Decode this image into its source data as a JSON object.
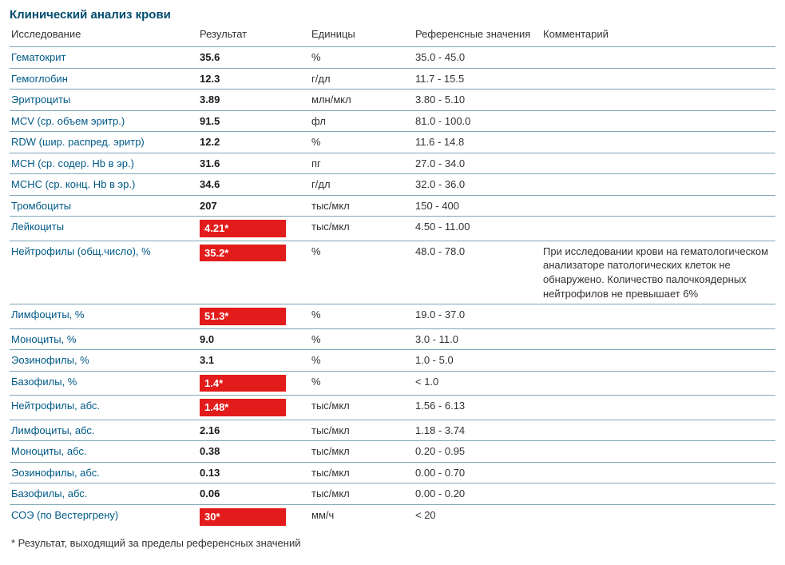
{
  "title": "Клинический анализ крови",
  "columns": {
    "test": "Исследование",
    "result": "Результат",
    "units": "Единицы",
    "ref": "Референсные значения",
    "comment": "Комментарий"
  },
  "footnote": "* Результат, выходящий за пределы референсных значений",
  "flag_bg": "#e21b1b",
  "flag_fg": "#ffffff",
  "rows": [
    {
      "test": "Гематокрит",
      "result": "35.6",
      "flagged": false,
      "units": "%",
      "ref": "35.0 - 45.0",
      "comment": ""
    },
    {
      "test": "Гемоглобин",
      "result": "12.3",
      "flagged": false,
      "units": "г/дл",
      "ref": "11.7 - 15.5",
      "comment": ""
    },
    {
      "test": "Эритроциты",
      "result": "3.89",
      "flagged": false,
      "units": "млн/мкл",
      "ref": "3.80 - 5.10",
      "comment": ""
    },
    {
      "test": "MCV (ср. объем эритр.)",
      "result": "91.5",
      "flagged": false,
      "units": "фл",
      "ref": "81.0 - 100.0",
      "comment": ""
    },
    {
      "test": "RDW (шир. распред. эритр)",
      "result": "12.2",
      "flagged": false,
      "units": "%",
      "ref": "11.6 - 14.8",
      "comment": ""
    },
    {
      "test": "MCH (ср. содер. Hb в эр.)",
      "result": "31.6",
      "flagged": false,
      "units": "пг",
      "ref": "27.0 - 34.0",
      "comment": ""
    },
    {
      "test": "MCHC (ср. конц. Hb в эр.)",
      "result": "34.6",
      "flagged": false,
      "units": "г/дл",
      "ref": "32.0 - 36.0",
      "comment": ""
    },
    {
      "test": "Тромбоциты",
      "result": "207",
      "flagged": false,
      "units": "тыс/мкл",
      "ref": "150 - 400",
      "comment": ""
    },
    {
      "test": "Лейкоциты",
      "result": "4.21*",
      "flagged": true,
      "units": "тыс/мкл",
      "ref": "4.50 - 11.00",
      "comment": ""
    },
    {
      "test": "Нейтрофилы (общ.число), %",
      "result": "35.2*",
      "flagged": true,
      "units": "%",
      "ref": "48.0 - 78.0",
      "comment": "При исследовании крови на гематологическом анализаторе патологических клеток не обнаружено. Количество палочкоядерных нейтрофилов не превышает 6%"
    },
    {
      "test": "Лимфоциты, %",
      "result": "51.3*",
      "flagged": true,
      "units": "%",
      "ref": "19.0 - 37.0",
      "comment": ""
    },
    {
      "test": "Моноциты, %",
      "result": "9.0",
      "flagged": false,
      "units": "%",
      "ref": "3.0 - 11.0",
      "comment": ""
    },
    {
      "test": "Эозинофилы, %",
      "result": "3.1",
      "flagged": false,
      "units": "%",
      "ref": "1.0 - 5.0",
      "comment": ""
    },
    {
      "test": "Базофилы, %",
      "result": "1.4*",
      "flagged": true,
      "units": "%",
      "ref": "< 1.0",
      "comment": ""
    },
    {
      "test": "Нейтрофилы, абс.",
      "result": "1.48*",
      "flagged": true,
      "units": "тыс/мкл",
      "ref": "1.56 - 6.13",
      "comment": ""
    },
    {
      "test": "Лимфоциты, абс.",
      "result": "2.16",
      "flagged": false,
      "units": "тыс/мкл",
      "ref": "1.18 - 3.74",
      "comment": ""
    },
    {
      "test": "Моноциты, абс.",
      "result": "0.38",
      "flagged": false,
      "units": "тыс/мкл",
      "ref": "0.20 - 0.95",
      "comment": ""
    },
    {
      "test": "Эозинофилы, абс.",
      "result": "0.13",
      "flagged": false,
      "units": "тыс/мкл",
      "ref": "0.00 - 0.70",
      "comment": ""
    },
    {
      "test": "Базофилы, абс.",
      "result": "0.06",
      "flagged": false,
      "units": "тыс/мкл",
      "ref": "0.00 - 0.20",
      "comment": ""
    },
    {
      "test": "СОЭ (по Вестергрену)",
      "result": "30*",
      "flagged": true,
      "units": "мм/ч",
      "ref": "< 20",
      "comment": ""
    }
  ]
}
